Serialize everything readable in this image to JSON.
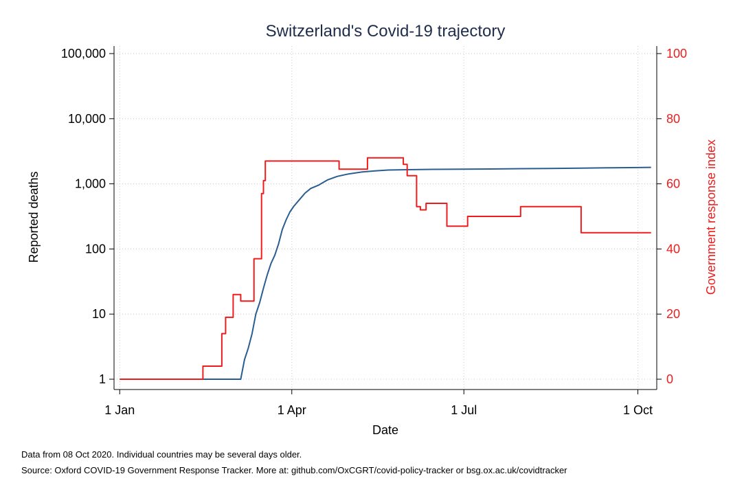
{
  "chart_data": {
    "type": "line",
    "title": "Switzerland's Covid-19 trajectory",
    "xlabel": "Date",
    "ylabel_left": "Reported deaths",
    "ylabel_right": "Government response index",
    "x_ticks": [
      {
        "date": "2020-01-01",
        "label": "1 Jan"
      },
      {
        "date": "2020-04-01",
        "label": "1 Apr"
      },
      {
        "date": "2020-07-01",
        "label": "1 Jul"
      },
      {
        "date": "2020-10-01",
        "label": "1 Oct"
      }
    ],
    "xlim": [
      "2020-01-01",
      "2020-10-08"
    ],
    "y_left": {
      "scale": "log",
      "lim": [
        1,
        100000
      ],
      "ticks": [
        {
          "value": 1,
          "label": "1"
        },
        {
          "value": 10,
          "label": "10"
        },
        {
          "value": 100,
          "label": "100"
        },
        {
          "value": 1000,
          "label": "1,000"
        },
        {
          "value": 10000,
          "label": "10,000"
        },
        {
          "value": 100000,
          "label": "100,000"
        }
      ]
    },
    "y_right": {
      "scale": "linear",
      "lim": [
        0,
        100
      ],
      "ticks": [
        {
          "value": 0,
          "label": "0"
        },
        {
          "value": 20,
          "label": "20"
        },
        {
          "value": 40,
          "label": "40"
        },
        {
          "value": 60,
          "label": "60"
        },
        {
          "value": 80,
          "label": "80"
        },
        {
          "value": 100,
          "label": "100"
        }
      ]
    },
    "grid": true,
    "series": [
      {
        "axis": "left",
        "color": "#2a5d8f",
        "step": false,
        "points": [
          [
            "2020-01-01",
            1
          ],
          [
            "2020-03-05",
            1
          ],
          [
            "2020-03-07",
            2
          ],
          [
            "2020-03-09",
            3
          ],
          [
            "2020-03-11",
            5
          ],
          [
            "2020-03-13",
            10
          ],
          [
            "2020-03-15",
            15
          ],
          [
            "2020-03-17",
            25
          ],
          [
            "2020-03-19",
            40
          ],
          [
            "2020-03-21",
            60
          ],
          [
            "2020-03-23",
            80
          ],
          [
            "2020-03-25",
            120
          ],
          [
            "2020-03-27",
            200
          ],
          [
            "2020-03-29",
            280
          ],
          [
            "2020-03-31",
            370
          ],
          [
            "2020-04-02",
            450
          ],
          [
            "2020-04-05",
            570
          ],
          [
            "2020-04-08",
            720
          ],
          [
            "2020-04-11",
            850
          ],
          [
            "2020-04-15",
            950
          ],
          [
            "2020-04-20",
            1150
          ],
          [
            "2020-04-25",
            1300
          ],
          [
            "2020-05-01",
            1420
          ],
          [
            "2020-05-08",
            1520
          ],
          [
            "2020-05-15",
            1580
          ],
          [
            "2020-05-22",
            1630
          ],
          [
            "2020-06-01",
            1650
          ],
          [
            "2020-06-15",
            1670
          ],
          [
            "2020-07-01",
            1680
          ],
          [
            "2020-07-15",
            1690
          ],
          [
            "2020-08-01",
            1710
          ],
          [
            "2020-08-15",
            1720
          ],
          [
            "2020-09-01",
            1740
          ],
          [
            "2020-09-15",
            1760
          ],
          [
            "2020-10-01",
            1780
          ],
          [
            "2020-10-08",
            1790
          ]
        ]
      },
      {
        "axis": "right",
        "color": "#ee1c1c",
        "step": true,
        "points": [
          [
            "2020-01-01",
            0
          ],
          [
            "2020-02-14",
            4
          ],
          [
            "2020-02-24",
            14
          ],
          [
            "2020-02-26",
            19
          ],
          [
            "2020-03-01",
            26
          ],
          [
            "2020-03-05",
            24
          ],
          [
            "2020-03-12",
            37
          ],
          [
            "2020-03-16",
            57
          ],
          [
            "2020-03-17",
            61
          ],
          [
            "2020-03-18",
            67
          ],
          [
            "2020-04-26",
            64.5
          ],
          [
            "2020-05-11",
            68
          ],
          [
            "2020-05-30",
            66
          ],
          [
            "2020-06-01",
            62.5
          ],
          [
            "2020-06-06",
            53
          ],
          [
            "2020-06-08",
            52
          ],
          [
            "2020-06-11",
            54
          ],
          [
            "2020-06-22",
            47
          ],
          [
            "2020-07-03",
            50
          ],
          [
            "2020-07-31",
            53
          ],
          [
            "2020-09-01",
            45
          ],
          [
            "2020-10-08",
            45
          ]
        ]
      }
    ]
  },
  "notes": {
    "line1": "Data from 08 Oct 2020. Individual countries may be several days older.",
    "line2": "Source: Oxford COVID-19 Government Response Tracker. More at: github.com/OxCGRT/covid-policy-tracker or bsg.ox.ac.uk/covidtracker"
  }
}
